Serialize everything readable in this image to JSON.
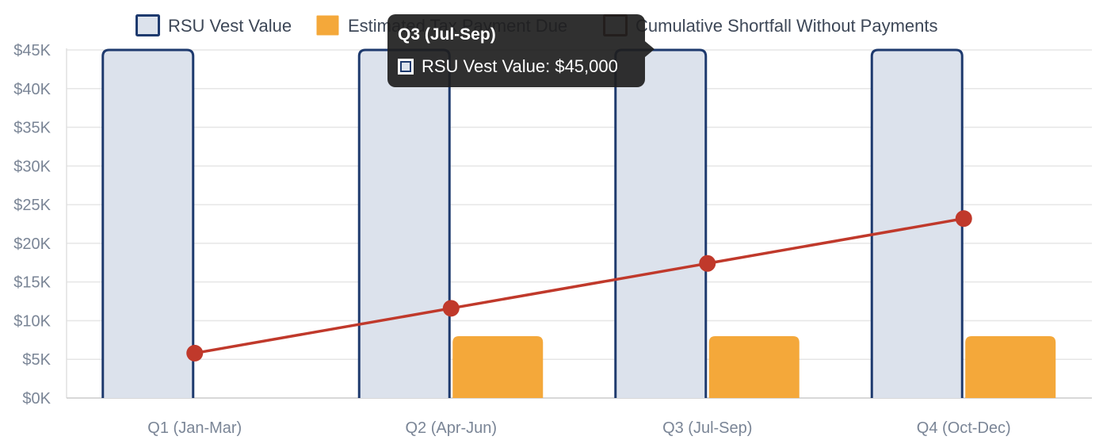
{
  "chart_data": {
    "type": "bar",
    "categories": [
      "Q1 (Jan-Mar)",
      "Q2 (Apr-Jun)",
      "Q3 (Jul-Sep)",
      "Q4 (Oct-Dec)"
    ],
    "series": [
      {
        "name": "RSU Vest Value",
        "type": "bar",
        "values": [
          45000,
          45000,
          45000,
          45000
        ],
        "color": "#1e3a6e",
        "fill": "#dce2ec"
      },
      {
        "name": "Estimated Tax Payment Due",
        "type": "bar",
        "values": [
          0,
          8000,
          8000,
          8000
        ],
        "color": "#f4a83a",
        "fill": "#f4a83a"
      },
      {
        "name": "Cumulative Shortfall Without Payments",
        "type": "line",
        "values": [
          5800,
          11600,
          17400,
          23200
        ],
        "color": "#c0392b",
        "fill": "#5a1a12"
      }
    ],
    "ylim": [
      0,
      45000
    ],
    "yticks": [
      0,
      5000,
      10000,
      15000,
      20000,
      25000,
      30000,
      35000,
      40000,
      45000
    ],
    "ytick_labels": [
      "$0K",
      "$5K",
      "$10K",
      "$15K",
      "$20K",
      "$25K",
      "$30K",
      "$35K",
      "$40K",
      "$45K"
    ],
    "legend_position": "top-center",
    "grid": true
  },
  "tooltip": {
    "title": "Q3 (Jul-Sep)",
    "line": "RSU Vest Value: $45,000"
  }
}
